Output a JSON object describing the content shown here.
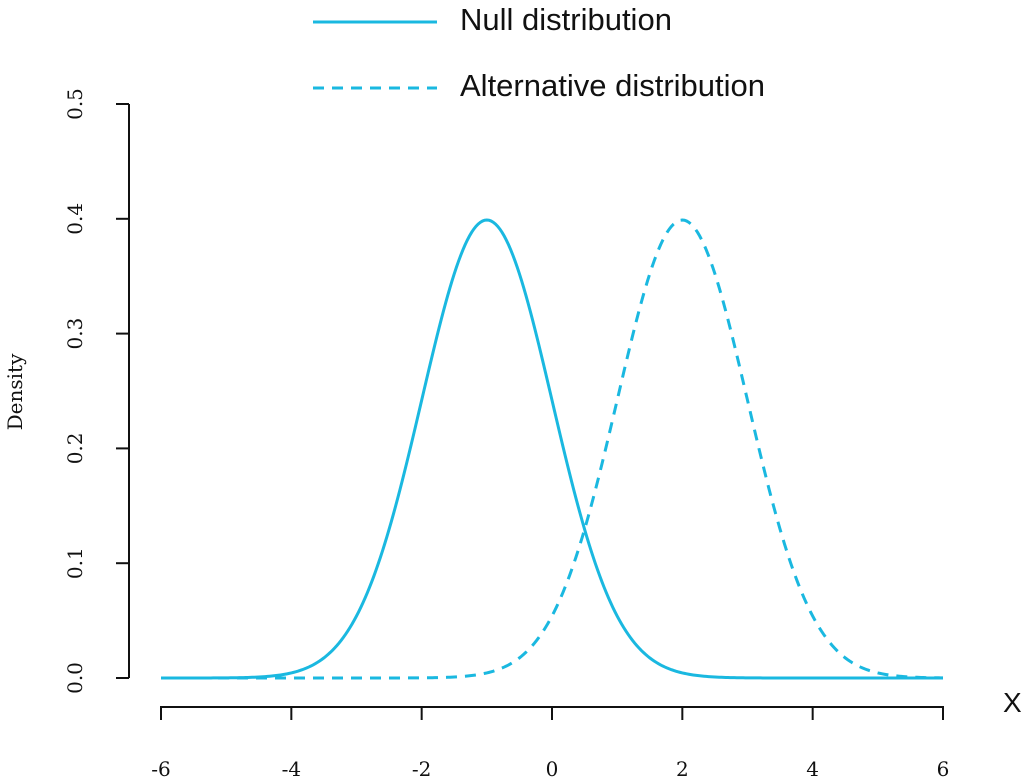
{
  "chart_data": {
    "type": "line",
    "title": "",
    "xlabel": "X",
    "ylabel": "Density",
    "xlim": [
      -6,
      6
    ],
    "ylim": [
      0,
      0.5
    ],
    "x_ticks": [
      "-6",
      "-4",
      "-2",
      "0",
      "2",
      "4",
      "6"
    ],
    "y_ticks": [
      "0.0",
      "0.1",
      "0.2",
      "0.3",
      "0.4",
      "0.5"
    ],
    "grid": false,
    "legend_position": "top-center",
    "series": [
      {
        "name": "Null distribution",
        "distribution": "normal",
        "mean": -1,
        "sd": 1,
        "style": "solid",
        "color": "#1ab8e0"
      },
      {
        "name": "Alternative distribution",
        "distribution": "normal",
        "mean": 2,
        "sd": 1,
        "style": "dashed",
        "color": "#1ab8e0"
      }
    ]
  }
}
